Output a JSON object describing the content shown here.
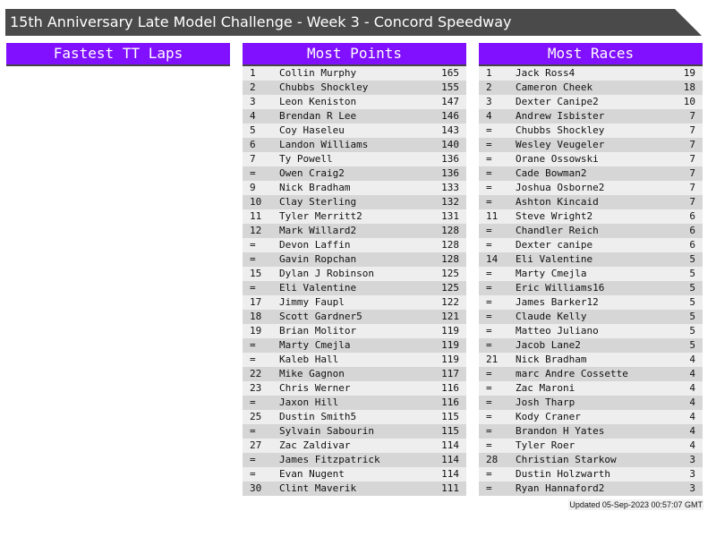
{
  "title": "15th Anniversary Late Model Challenge - Week 3 - Concord Speedway",
  "colors": {
    "header_bg": "#4a4a4a",
    "panel_header": "#8010ff"
  },
  "panels": [
    {
      "title": "Fastest TT Laps",
      "rows": []
    },
    {
      "title": "Most Points",
      "rows": [
        [
          "1",
          "Collin Murphy",
          "165"
        ],
        [
          "2",
          "Chubbs Shockley",
          "155"
        ],
        [
          "3",
          "Leon Keniston",
          "147"
        ],
        [
          "4",
          "Brendan R Lee",
          "146"
        ],
        [
          "5",
          "Coy Haseleu",
          "143"
        ],
        [
          "6",
          "Landon Williams",
          "140"
        ],
        [
          "7",
          "Ty Powell",
          "136"
        ],
        [
          "=",
          "Owen Craig2",
          "136"
        ],
        [
          "9",
          "Nick Bradham",
          "133"
        ],
        [
          "10",
          "Clay Sterling",
          "132"
        ],
        [
          "11",
          "Tyler Merritt2",
          "131"
        ],
        [
          "12",
          "Mark Willard2",
          "128"
        ],
        [
          "=",
          "Devon Laffin",
          "128"
        ],
        [
          "=",
          "Gavin Ropchan",
          "128"
        ],
        [
          "15",
          "Dylan J Robinson",
          "125"
        ],
        [
          "=",
          "Eli Valentine",
          "125"
        ],
        [
          "17",
          "Jimmy Faupl",
          "122"
        ],
        [
          "18",
          "Scott Gardner5",
          "121"
        ],
        [
          "19",
          "Brian Molitor",
          "119"
        ],
        [
          "=",
          "Marty Cmejla",
          "119"
        ],
        [
          "=",
          "Kaleb Hall",
          "119"
        ],
        [
          "22",
          "Mike Gagnon",
          "117"
        ],
        [
          "23",
          "Chris Werner",
          "116"
        ],
        [
          "=",
          "Jaxon Hill",
          "116"
        ],
        [
          "25",
          "Dustin Smith5",
          "115"
        ],
        [
          "=",
          "Sylvain Sabourin",
          "115"
        ],
        [
          "27",
          "Zac Zaldivar",
          "114"
        ],
        [
          "=",
          "James Fitzpatrick",
          "114"
        ],
        [
          "=",
          "Evan Nugent",
          "114"
        ],
        [
          "30",
          "Clint Maverik",
          "111"
        ]
      ]
    },
    {
      "title": "Most Races",
      "rows": [
        [
          "1",
          "Jack Ross4",
          "19"
        ],
        [
          "2",
          "Cameron Cheek",
          "18"
        ],
        [
          "3",
          "Dexter Canipe2",
          "10"
        ],
        [
          "4",
          "Andrew Isbister",
          "7"
        ],
        [
          "=",
          "Chubbs Shockley",
          "7"
        ],
        [
          "=",
          "Wesley Veugeler",
          "7"
        ],
        [
          "=",
          "Orane Ossowski",
          "7"
        ],
        [
          "=",
          "Cade Bowman2",
          "7"
        ],
        [
          "=",
          "Joshua Osborne2",
          "7"
        ],
        [
          "=",
          "Ashton Kincaid",
          "7"
        ],
        [
          "11",
          "Steve Wright2",
          "6"
        ],
        [
          "=",
          "Chandler Reich",
          "6"
        ],
        [
          "=",
          "Dexter canipe",
          "6"
        ],
        [
          "14",
          "Eli Valentine",
          "5"
        ],
        [
          "=",
          "Marty Cmejla",
          "5"
        ],
        [
          "=",
          "Eric Williams16",
          "5"
        ],
        [
          "=",
          "James Barker12",
          "5"
        ],
        [
          "=",
          "Claude Kelly",
          "5"
        ],
        [
          "=",
          "Matteo Juliano",
          "5"
        ],
        [
          "=",
          "Jacob Lane2",
          "5"
        ],
        [
          "21",
          "Nick Bradham",
          "4"
        ],
        [
          "=",
          "marc Andre Cossette",
          "4"
        ],
        [
          "=",
          "Zac Maroni",
          "4"
        ],
        [
          "=",
          "Josh Tharp",
          "4"
        ],
        [
          "=",
          "Kody Craner",
          "4"
        ],
        [
          "=",
          "Brandon H Yates",
          "4"
        ],
        [
          "=",
          "Tyler Roer",
          "4"
        ],
        [
          "28",
          "Christian Starkow",
          "3"
        ],
        [
          "=",
          "Dustin Holzwarth",
          "3"
        ],
        [
          "=",
          "Ryan Hannaford2",
          "3"
        ]
      ]
    }
  ],
  "updated": "Updated 05-Sep-2023 00:57:07 GMT"
}
